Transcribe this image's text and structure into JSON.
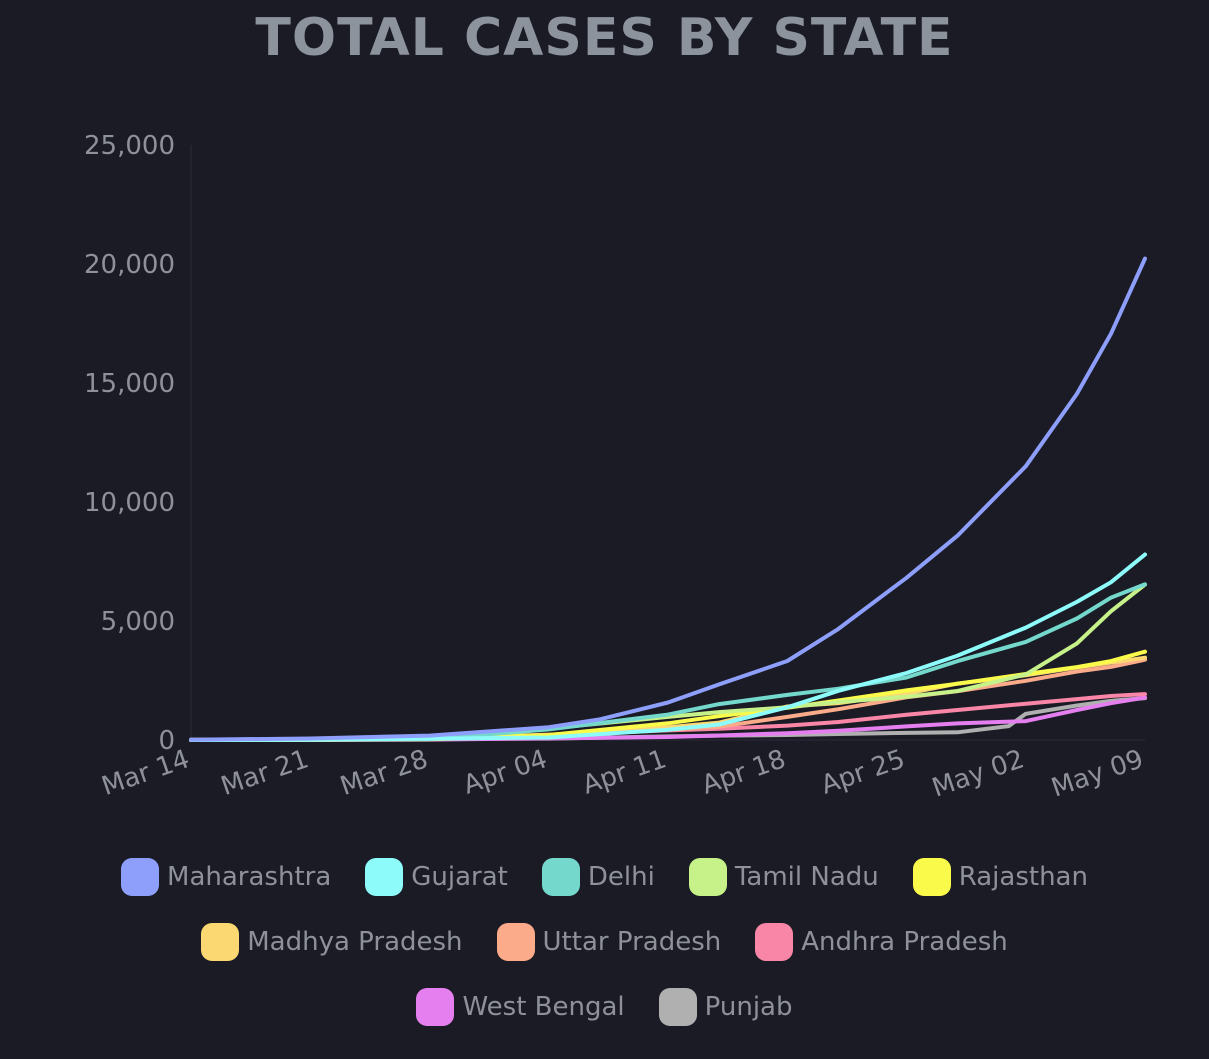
{
  "chart_data": {
    "type": "line",
    "title": "TOTAL CASES BY STATE",
    "x_ticks": [
      "Mar 14",
      "Mar 21",
      "Mar 28",
      "Apr 04",
      "Apr 11",
      "Apr 18",
      "Apr 25",
      "May 02",
      "May 09"
    ],
    "x_range": [
      "Mar 14",
      "May 09"
    ],
    "y_ticks": [
      "0",
      "5,000",
      "10,000",
      "15,000",
      "20,000",
      "25,000"
    ],
    "ylim": [
      0,
      25000
    ],
    "grid": false,
    "legend_position": "bottom",
    "series": [
      {
        "name": "Maharashtra",
        "color": "#8e9ffb",
        "points": [
          [
            "Mar 14",
            14
          ],
          [
            "Mar 21",
            63
          ],
          [
            "Mar 28",
            186
          ],
          [
            "Apr 04",
            537
          ],
          [
            "Apr 07",
            868
          ],
          [
            "Apr 11",
            1574
          ],
          [
            "Apr 14",
            2337
          ],
          [
            "Apr 18",
            3320
          ],
          [
            "Apr 21",
            4669
          ],
          [
            "Apr 25",
            6817
          ],
          [
            "Apr 28",
            8590
          ],
          [
            "May 02",
            11506
          ],
          [
            "May 05",
            14541
          ],
          [
            "May 07",
            17063
          ],
          [
            "May 09",
            20228
          ]
        ]
      },
      {
        "name": "Gujarat",
        "color": "#8efbfb",
        "points": [
          [
            "Mar 14",
            0
          ],
          [
            "Mar 21",
            14
          ],
          [
            "Mar 28",
            55
          ],
          [
            "Apr 04",
            105
          ],
          [
            "Apr 11",
            432
          ],
          [
            "Apr 14",
            650
          ],
          [
            "Apr 18",
            1376
          ],
          [
            "Apr 21",
            2066
          ],
          [
            "Apr 25",
            2815
          ],
          [
            "Apr 28",
            3548
          ],
          [
            "May 02",
            4721
          ],
          [
            "May 05",
            5804
          ],
          [
            "May 07",
            6625
          ],
          [
            "May 09",
            7796
          ]
        ]
      },
      {
        "name": "Delhi",
        "color": "#75d8cc",
        "points": [
          [
            "Mar 14",
            7
          ],
          [
            "Mar 21",
            27
          ],
          [
            "Mar 28",
            39
          ],
          [
            "Apr 04",
            445
          ],
          [
            "Apr 11",
            1069
          ],
          [
            "Apr 14",
            1510
          ],
          [
            "Apr 18",
            1893
          ],
          [
            "Apr 21",
            2156
          ],
          [
            "Apr 25",
            2625
          ],
          [
            "Apr 28",
            3314
          ],
          [
            "May 02",
            4122
          ],
          [
            "May 05",
            5104
          ],
          [
            "May 07",
            5980
          ],
          [
            "May 09",
            6542
          ]
        ]
      },
      {
        "name": "Tamil Nadu",
        "color": "#c7f28a",
        "points": [
          [
            "Mar 14",
            1
          ],
          [
            "Mar 21",
            6
          ],
          [
            "Mar 28",
            42
          ],
          [
            "Apr 04",
            485
          ],
          [
            "Apr 11",
            969
          ],
          [
            "Apr 14",
            1173
          ],
          [
            "Apr 18",
            1372
          ],
          [
            "Apr 21",
            1596
          ],
          [
            "Apr 25",
            1821
          ],
          [
            "Apr 28",
            2058
          ],
          [
            "May 02",
            2757
          ],
          [
            "May 05",
            4058
          ],
          [
            "May 07",
            5409
          ],
          [
            "May 09",
            6535
          ]
        ]
      },
      {
        "name": "Rajasthan",
        "color": "#fafa4b",
        "points": [
          [
            "Mar 14",
            2
          ],
          [
            "Mar 21",
            23
          ],
          [
            "Mar 28",
            57
          ],
          [
            "Apr 04",
            210
          ],
          [
            "Apr 11",
            700
          ],
          [
            "Apr 14",
            1005
          ],
          [
            "Apr 18",
            1351
          ],
          [
            "Apr 21",
            1659
          ],
          [
            "Apr 25",
            2083
          ],
          [
            "Apr 28",
            2364
          ],
          [
            "May 02",
            2772
          ],
          [
            "May 05",
            3061
          ],
          [
            "May 07",
            3317
          ],
          [
            "May 09",
            3708
          ]
        ]
      },
      {
        "name": "Madhya Pradesh",
        "color": "#fcd873",
        "points": [
          [
            "Mar 14",
            0
          ],
          [
            "Mar 21",
            6
          ],
          [
            "Mar 28",
            30
          ],
          [
            "Apr 04",
            163
          ],
          [
            "Apr 11",
            532
          ],
          [
            "Apr 14",
            730
          ],
          [
            "Apr 18",
            1407
          ],
          [
            "Apr 21",
            1552
          ],
          [
            "Apr 25",
            1945
          ],
          [
            "Apr 28",
            2368
          ],
          [
            "May 02",
            2719
          ],
          [
            "May 05",
            3049
          ],
          [
            "May 07",
            3252
          ],
          [
            "May 09",
            3457
          ]
        ]
      },
      {
        "name": "Uttar Pradesh",
        "color": "#fbab8a",
        "points": [
          [
            "Mar 14",
            11
          ],
          [
            "Mar 21",
            24
          ],
          [
            "Mar 28",
            65
          ],
          [
            "Apr 04",
            227
          ],
          [
            "Apr 11",
            433
          ],
          [
            "Apr 14",
            558
          ],
          [
            "Apr 18",
            969
          ],
          [
            "Apr 21",
            1294
          ],
          [
            "Apr 25",
            1793
          ],
          [
            "Apr 28",
            2053
          ],
          [
            "May 02",
            2487
          ],
          [
            "May 05",
            2880
          ],
          [
            "May 07",
            3071
          ],
          [
            "May 09",
            3373
          ]
        ]
      },
      {
        "name": "Andhra Pradesh",
        "color": "#f986a7",
        "points": [
          [
            "Mar 14",
            1
          ],
          [
            "Mar 21",
            3
          ],
          [
            "Mar 28",
            19
          ],
          [
            "Apr 04",
            192
          ],
          [
            "Apr 11",
            405
          ],
          [
            "Apr 14",
            473
          ],
          [
            "Apr 18",
            603
          ],
          [
            "Apr 21",
            757
          ],
          [
            "Apr 25",
            1061
          ],
          [
            "Apr 28",
            1259
          ],
          [
            "May 02",
            1525
          ],
          [
            "May 05",
            1717
          ],
          [
            "May 07",
            1847
          ],
          [
            "May 09",
            1930
          ]
        ]
      },
      {
        "name": "West Bengal",
        "color": "#e57ff0",
        "points": [
          [
            "Mar 14",
            0
          ],
          [
            "Mar 21",
            4
          ],
          [
            "Mar 28",
            18
          ],
          [
            "Apr 04",
            69
          ],
          [
            "Apr 11",
            126
          ],
          [
            "Apr 14",
            190
          ],
          [
            "Apr 18",
            287
          ],
          [
            "Apr 21",
            392
          ],
          [
            "Apr 25",
            571
          ],
          [
            "Apr 28",
            697
          ],
          [
            "May 02",
            795
          ],
          [
            "May 05",
            1259
          ],
          [
            "May 07",
            1548
          ],
          [
            "May 09",
            1786
          ]
        ]
      },
      {
        "name": "Punjab",
        "color": "#b0b0b0",
        "points": [
          [
            "Mar 14",
            1
          ],
          [
            "Mar 21",
            13
          ],
          [
            "Mar 28",
            38
          ],
          [
            "Apr 04",
            57
          ],
          [
            "Apr 11",
            151
          ],
          [
            "Apr 14",
            184
          ],
          [
            "Apr 18",
            211
          ],
          [
            "Apr 21",
            251
          ],
          [
            "Apr 25",
            298
          ],
          [
            "Apr 28",
            322
          ],
          [
            "May 01",
            585
          ],
          [
            "May 02",
            1102
          ],
          [
            "May 05",
            1451
          ],
          [
            "May 07",
            1644
          ],
          [
            "May 09",
            1762
          ]
        ]
      }
    ]
  }
}
